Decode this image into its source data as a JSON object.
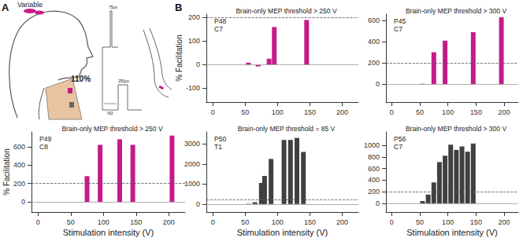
{
  "panel_labels": [
    "A",
    "B"
  ],
  "diagram": {
    "labels": [
      "Variable",
      "110%",
      "75µs",
      "250µs",
      "ISI"
    ]
  },
  "chart_data": [
    {
      "type": "bar",
      "title": "Brain-only MEP threshold > 250 V",
      "annotations": [
        "P48",
        "C7"
      ],
      "color": "#c51b8a",
      "x": [
        55,
        70,
        87,
        95,
        145
      ],
      "values": [
        8,
        -8,
        25,
        160,
        190
      ],
      "xlim": [
        -10,
        225
      ],
      "xticks": [
        0,
        50,
        100,
        150,
        200
      ],
      "ylim": [
        -160,
        215
      ],
      "yticks": [
        -100,
        0,
        100,
        200
      ],
      "y_label": "% Facilitation",
      "reference_lines": [
        {
          "value": 200,
          "line_style": "dashed"
        },
        {
          "value": 0,
          "line_style": "solid"
        }
      ]
    },
    {
      "type": "bar",
      "title": "Brain-only MEP threshold > 300 V",
      "annotations": [
        "P45",
        "C7"
      ],
      "color": "#c51b8a",
      "x": [
        55,
        75,
        95,
        145,
        195
      ],
      "values": [
        3,
        300,
        410,
        490,
        630
      ],
      "xlim": [
        -10,
        225
      ],
      "xticks": [
        0,
        50,
        100,
        150,
        200
      ],
      "ylim": [
        -170,
        660
      ],
      "yticks": [
        0,
        200,
        400,
        600
      ],
      "reference_lines": [
        {
          "value": 200,
          "line_style": "dashed"
        },
        {
          "value": 0,
          "line_style": "solid"
        }
      ]
    },
    {
      "type": "bar",
      "title": "Brain-only MEP threshold > 250 V",
      "annotations": [
        "P49",
        "C8"
      ],
      "color": "#c51b8a",
      "x": [
        75,
        95,
        125,
        145,
        205
      ],
      "values": [
        280,
        620,
        680,
        620,
        720
      ],
      "xlim": [
        -10,
        225
      ],
      "xticks": [
        0,
        50,
        100,
        150,
        200
      ],
      "ylim": [
        -110,
        760
      ],
      "yticks": [
        0,
        200,
        400,
        600
      ],
      "x_label": "Stimulation intensity (V)",
      "y_label": "% Facilitation",
      "reference_lines": [
        {
          "value": 200,
          "line_style": "dashed"
        },
        {
          "value": 0,
          "line_style": "solid"
        }
      ]
    },
    {
      "type": "bar",
      "title": "Brain-only MEP threshold = 85 V",
      "annotations": [
        "P50",
        "T1"
      ],
      "color": "#404040",
      "x": [
        55,
        65,
        75,
        80,
        90,
        110,
        120,
        130,
        140
      ],
      "values": [
        15,
        90,
        1050,
        1400,
        2250,
        3200,
        3200,
        3300,
        2600
      ],
      "xlim": [
        -10,
        225
      ],
      "xticks": [
        0,
        50,
        100,
        150,
        200
      ],
      "ylim": [
        -400,
        3600
      ],
      "yticks": [
        0,
        1000,
        2000,
        3000
      ],
      "x_label": "Stimulation intensity (V)",
      "reference_lines": [
        {
          "value": 200,
          "line_style": "dashed"
        },
        {
          "value": 0,
          "line_style": "solid"
        }
      ]
    },
    {
      "type": "bar",
      "title": "Brain-only MEP threshold > 300 V",
      "annotations": [
        "P56",
        "C7"
      ],
      "color": "#404040",
      "x": [
        55,
        65,
        75,
        85,
        95,
        105,
        115,
        125,
        135,
        145
      ],
      "values": [
        40,
        150,
        360,
        710,
        820,
        1010,
        920,
        980,
        890,
        1030
      ],
      "xlim": [
        -10,
        225
      ],
      "xticks": [
        0,
        50,
        100,
        150,
        200
      ],
      "ylim": [
        -150,
        1230
      ],
      "yticks": [
        0,
        200,
        400,
        600,
        800,
        1000
      ],
      "x_label": "Stimulation intensity (V)",
      "reference_lines": [
        {
          "value": 200,
          "line_style": "dashed"
        },
        {
          "value": 0,
          "line_style": "solid"
        }
      ]
    }
  ]
}
